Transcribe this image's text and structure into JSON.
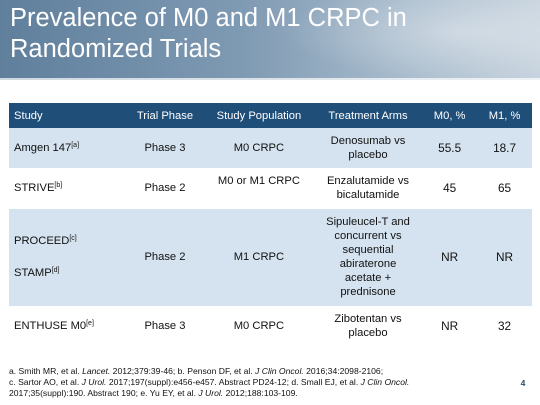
{
  "slide": {
    "title_line1": "Prevalence of M0 and M1 CRPC in",
    "title_line2": "Randomized Trials",
    "page_number": "4"
  },
  "table": {
    "headers": [
      "Study",
      "Trial Phase",
      "Study Population",
      "Treatment Arms",
      "M0, %",
      "M1, %"
    ],
    "rows": [
      {
        "study": "Amgen 147",
        "ref": "[a]",
        "phase": "Phase 3",
        "population": "M0 CRPC",
        "arms_1": "Denosumab vs",
        "arms_2": "placebo",
        "m0": "55.5",
        "m1": "18.7"
      },
      {
        "study": "STRIVE",
        "ref": "[b]",
        "phase": "Phase 2",
        "population": "M0 or M1 CRPC",
        "arms_1": "Enzalutamide vs",
        "arms_2": "bicalutamide",
        "m0": "45",
        "m1": "65"
      },
      {
        "study": "PROCEED",
        "ref": "[c]",
        "study2": "STAMP",
        "ref2": "[d]",
        "phase": "Phase 2",
        "population": "M1 CRPC",
        "arms_1": "Sipuleucel-T and",
        "arms_2": "concurrent vs",
        "arms_3": "sequential",
        "arms_4": "abiraterone",
        "arms_5": "acetate +",
        "arms_6": "prednisone",
        "m0": "NR",
        "m1": "NR"
      },
      {
        "study": "ENTHUSE M0",
        "ref": "[e]",
        "phase": "Phase 3",
        "population": "M0 CRPC",
        "arms_1": "Zibotentan vs",
        "arms_2": "placebo",
        "m0": "NR",
        "m1": "32"
      }
    ]
  },
  "footnotes": {
    "a_pre": "a. Smith MR, et al. ",
    "a_journal": "Lancet.",
    "a_post": " 2012;379:39-46; b. Penson DF, et al. ",
    "b_journal": "J Clin Oncol.",
    "b_post": " 2016;34:2098-2106;",
    "c_pre": "c. Sartor AO, et al. ",
    "c_journal": "J Urol.",
    "c_post": " 2017;197(suppl):e456-e457. Abstract PD24-12; d. Small EJ, et al. ",
    "d_journal": "J Clin Oncol.",
    "d_post": "2017;35(suppl):190. Abstract 190; e. Yu EY, et al. ",
    "e_journal": "J Urol.",
    "e_post": " 2012;188:103-109."
  }
}
